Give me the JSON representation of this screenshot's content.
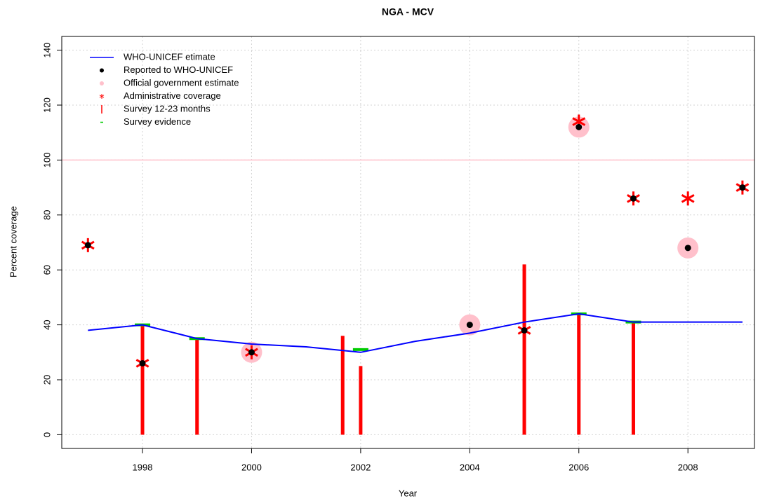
{
  "chart_data": {
    "type": "line",
    "title": "NGA  -  MCV",
    "xlabel": "Year",
    "ylabel": "Percent coverage",
    "xlim": [
      1996.52,
      2009.22
    ],
    "ylim": [
      -5,
      145
    ],
    "xticks": [
      1998,
      2000,
      2002,
      2004,
      2006,
      2008
    ],
    "yticks": [
      0,
      20,
      40,
      60,
      80,
      100,
      120,
      140
    ],
    "grid": true,
    "legend": "upper left",
    "reference_line": {
      "value": 100,
      "color": "#ffc0cb"
    },
    "series": [
      {
        "name": "WHO-UNICEF etimate",
        "color": "#0000ff",
        "style": "line",
        "x": [
          1997,
          1998,
          1999,
          2000,
          2001,
          2002,
          2003,
          2004,
          2005,
          2006,
          2007,
          2008,
          2009
        ],
        "values": [
          38,
          40,
          35,
          33,
          32,
          30,
          34,
          37,
          41,
          44,
          41,
          41,
          41
        ]
      },
      {
        "name": "Reported to WHO-UNICEF",
        "color": "#000000",
        "style": "dot",
        "x": [
          1997,
          1998,
          2000,
          2004,
          2005,
          2006,
          2007,
          2008,
          2009
        ],
        "values": [
          69,
          26,
          30,
          40,
          38,
          112,
          86,
          68,
          90
        ]
      },
      {
        "name": "Official government estimate",
        "color": "#ffc0cb",
        "style": "circle",
        "x": [
          2000,
          2004,
          2006,
          2008
        ],
        "values": [
          30,
          40,
          112,
          68
        ]
      },
      {
        "name": "Administrative coverage",
        "color": "#ff0000",
        "style": "star",
        "x": [
          1997,
          1998,
          2000,
          2005,
          2006,
          2007,
          2008,
          2009
        ],
        "values": [
          69,
          26,
          30,
          38,
          114,
          86,
          86,
          90
        ]
      },
      {
        "name": "Survey 12-23 months",
        "color": "#ff0000",
        "style": "vbar",
        "x": [
          1998,
          1999,
          2001.67,
          2002,
          2005,
          2006,
          2007
        ],
        "values": [
          40,
          35,
          36,
          25,
          62,
          44,
          41
        ]
      },
      {
        "name": "Survey evidence",
        "color": "#00cc00",
        "style": "hbar",
        "x": [
          1998,
          1999,
          2002,
          2006,
          2007
        ],
        "values": [
          40,
          35,
          31,
          44,
          41
        ]
      }
    ]
  }
}
